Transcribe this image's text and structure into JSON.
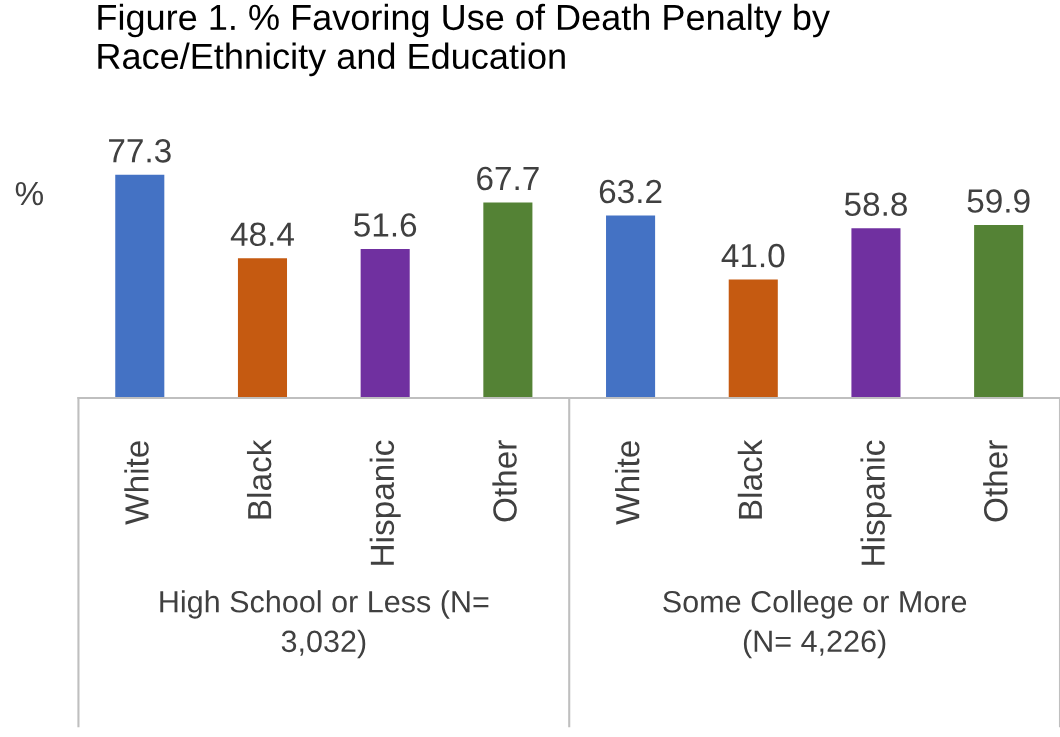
{
  "chart_data": {
    "type": "bar",
    "title": "Figure 1. % Favoring Use of Death Penalty by\nRace/Ethnicity and Education",
    "ylabel": "%",
    "categories": [
      "White",
      "Black",
      "Hispanic",
      "Other",
      "White",
      "Black",
      "Hispanic",
      "Other"
    ],
    "values": [
      77.3,
      48.4,
      51.6,
      67.7,
      63.2,
      41.0,
      58.8,
      59.9
    ],
    "value_labels": [
      "77.3",
      "48.4",
      "51.6",
      "67.7",
      "63.2",
      "41.0",
      "58.8",
      "59.9"
    ],
    "colors": [
      "#4472c4",
      "#c55a11",
      "#7030a0",
      "#548235",
      "#4472c4",
      "#c55a11",
      "#7030a0",
      "#548235"
    ],
    "tick_labels": "x",
    "grid": false,
    "legend": false,
    "annotations": [
      "High School or Less (N=\n3,032)",
      "Some College or More\n(N= 4,226)"
    ]
  }
}
